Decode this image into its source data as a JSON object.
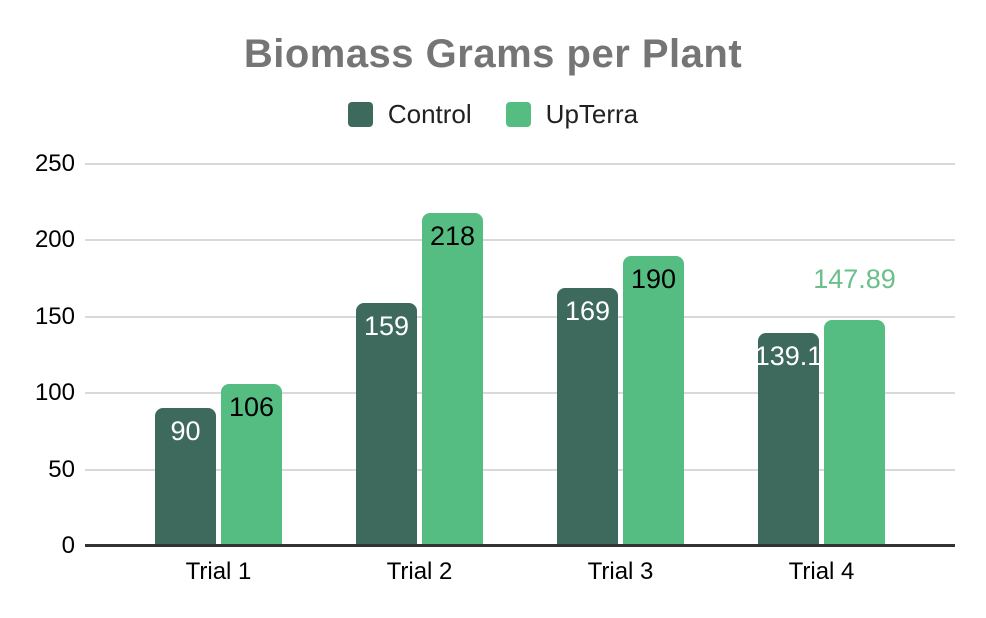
{
  "chart_data": {
    "type": "bar",
    "title": "Biomass Grams per Plant",
    "categories": [
      "Trial 1",
      "Trial 2",
      "Trial 3",
      "Trial 4"
    ],
    "series": [
      {
        "name": "Control",
        "color": "#3d6a5d",
        "label_color_inside": "#ffffff",
        "points": [
          {
            "value": 90,
            "label": "90",
            "label_position": "inside"
          },
          {
            "value": 159,
            "label": "159",
            "label_position": "inside"
          },
          {
            "value": 169,
            "label": "169",
            "label_position": "inside"
          },
          {
            "value": 139.1,
            "label": "139.1",
            "label_position": "inside"
          }
        ]
      },
      {
        "name": "UpTerra",
        "color": "#55bd81",
        "label_color_inside": "#000000",
        "points": [
          {
            "value": 106,
            "label": "106",
            "label_position": "inside"
          },
          {
            "value": 218,
            "label": "218",
            "label_position": "inside"
          },
          {
            "value": 190,
            "label": "190",
            "label_position": "inside"
          },
          {
            "value": 147.89,
            "label": "147.89",
            "label_position": "outside",
            "label_color": "#6abf8b"
          }
        ]
      }
    ],
    "ylim": [
      0,
      250
    ],
    "yticks": [
      0,
      50,
      100,
      150,
      200,
      250
    ],
    "grid": true,
    "legend_position": "top",
    "styles": {
      "background": "#ffffff",
      "title_color": "#757575",
      "gridline_color": "#d9d9d9",
      "axis_line_color": "#333333",
      "axis_label_color": "#000000",
      "legend_text_color": "#212121"
    }
  }
}
